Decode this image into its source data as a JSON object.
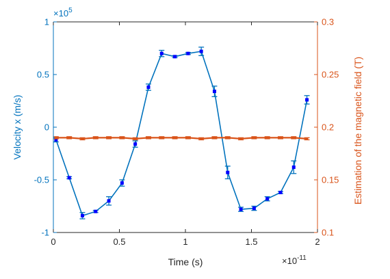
{
  "chart_data": {
    "type": "line",
    "xlabel": "Time (s)",
    "x_exponent_label": "×10",
    "x_exponent_power": "-11",
    "ylabel_left": "Velocity x (m/s)",
    "y_left_exponent_label": "×10",
    "y_left_exponent_power": "5",
    "ylabel_right": "Estimation of the magnetic field (T)",
    "xlim": [
      0,
      2
    ],
    "ylim_left": [
      -1,
      1
    ],
    "ylim_right": [
      0.1,
      0.3
    ],
    "x_ticks": [
      0,
      0.5,
      1,
      1.5,
      2
    ],
    "x_tick_labels": [
      "0",
      "0.5",
      "1",
      "1.5",
      "2"
    ],
    "y_left_ticks": [
      -1,
      -0.5,
      0,
      0.5,
      1
    ],
    "y_left_tick_labels": [
      "-1",
      "-0.5",
      "0",
      "0.5",
      "1"
    ],
    "y_right_ticks": [
      0.1,
      0.15,
      0.2,
      0.25,
      0.3
    ],
    "y_right_tick_labels": [
      "0.1",
      "0.15",
      "0.2",
      "0.25",
      "0.3"
    ],
    "grid": false,
    "colors": {
      "left_series": "#0072BD",
      "right_series": "#D95319",
      "markers": "#0000FF",
      "axis": "#262626"
    },
    "series": [
      {
        "axis": "left",
        "x": [
          0.02,
          0.12,
          0.22,
          0.32,
          0.42,
          0.52,
          0.62,
          0.72,
          0.82,
          0.92,
          1.02,
          1.12,
          1.22,
          1.32,
          1.42,
          1.52,
          1.62,
          1.72,
          1.82,
          1.92
        ],
        "y": [
          -0.12,
          -0.48,
          -0.84,
          -0.8,
          -0.7,
          -0.53,
          -0.16,
          0.38,
          0.7,
          0.67,
          0.7,
          0.72,
          0.34,
          -0.43,
          -0.78,
          -0.77,
          -0.68,
          -0.62,
          -0.38,
          0.26
        ],
        "err": [
          0.02,
          0.01,
          0.03,
          0.01,
          0.04,
          0.03,
          0.03,
          0.03,
          0.03,
          0.01,
          0.01,
          0.04,
          0.05,
          0.06,
          0.02,
          0.02,
          0.02,
          0.01,
          0.06,
          0.04
        ]
      },
      {
        "axis": "right",
        "x": [
          0.02,
          0.12,
          0.22,
          0.32,
          0.42,
          0.52,
          0.62,
          0.72,
          0.82,
          0.92,
          1.02,
          1.12,
          1.22,
          1.32,
          1.42,
          1.52,
          1.62,
          1.72,
          1.82,
          1.92
        ],
        "y": [
          0.19,
          0.19,
          0.189,
          0.19,
          0.19,
          0.19,
          0.189,
          0.19,
          0.19,
          0.19,
          0.19,
          0.189,
          0.19,
          0.19,
          0.189,
          0.19,
          0.19,
          0.19,
          0.19,
          0.189
        ],
        "err": [
          0.001,
          0.001,
          0.001,
          0.001,
          0.001,
          0.001,
          0.001,
          0.001,
          0.001,
          0.001,
          0.001,
          0.001,
          0.001,
          0.001,
          0.001,
          0.001,
          0.001,
          0.001,
          0.001,
          0.001
        ]
      }
    ]
  }
}
